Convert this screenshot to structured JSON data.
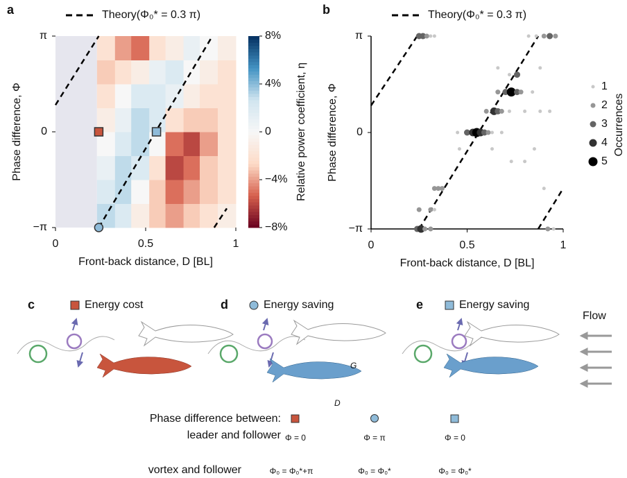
{
  "chart_data": [
    {
      "type": "heatmap",
      "panel_label": "a",
      "xlabel": "Front-back distance, D [BL]",
      "ylabel": "Phase difference, Φ",
      "colorbar_label": "Relative power coefficient, η",
      "xlim": [
        0,
        1
      ],
      "xticks": [
        0,
        0.5,
        1
      ],
      "ylim": [
        -1,
        1
      ],
      "yticks": [
        {
          "value": -1,
          "label": "−π"
        },
        0,
        {
          "value": 1,
          "label": "π"
        }
      ],
      "clim": [
        -8,
        8
      ],
      "cticks": [
        {
          "value": 8,
          "label": "8%"
        },
        {
          "value": 4,
          "label": "4%"
        },
        0,
        {
          "value": -4,
          "label": "−4%"
        },
        {
          "value": -8,
          "label": "−8%"
        }
      ],
      "xbins": [
        0.23,
        0.33,
        0.42,
        0.52,
        0.61,
        0.71,
        0.8,
        0.9,
        1.0
      ],
      "ybins": [
        -1,
        -0.75,
        -0.5,
        -0.25,
        0,
        0.25,
        0.5,
        0.75,
        1
      ],
      "z": [
        [
          3,
          2,
          -1,
          -3,
          -4,
          -3,
          -2,
          -1
        ],
        [
          2,
          3,
          0,
          -3,
          -5,
          -4,
          -3,
          -2
        ],
        [
          1,
          3,
          2,
          -2,
          -6,
          -5,
          -3,
          -2
        ],
        [
          0,
          2,
          3,
          0,
          -5,
          -6,
          -4,
          -2
        ],
        [
          -1,
          1,
          3,
          2,
          -2,
          -3,
          -3,
          -2
        ],
        [
          -2,
          0,
          2,
          2,
          1,
          -1,
          -2,
          -2
        ],
        [
          -3,
          -2,
          -1,
          1,
          2,
          0,
          -1,
          -2
        ],
        [
          -2,
          -4,
          -5,
          -2,
          -1,
          1,
          0,
          -1
        ]
      ],
      "theory": {
        "name": "Theory(Φ₀* = 0.3 π)",
        "x": [
          0,
          0.24,
          null,
          0.24,
          0.87,
          null,
          0.88,
          0.95
        ],
        "y": [
          0.28,
          1,
          null,
          -1,
          1,
          null,
          -1,
          -0.8
        ]
      },
      "markers": [
        {
          "x": 0.24,
          "y": 0,
          "shape": "square",
          "color": "#c8553d"
        },
        {
          "x": 0.56,
          "y": 0,
          "shape": "square",
          "color": "#8fbbd9"
        },
        {
          "x": 0.24,
          "y": -1,
          "shape": "circle",
          "color": "#8fbbd9"
        }
      ]
    },
    {
      "type": "scatter",
      "panel_label": "b",
      "xlabel": "Front-back distance, D [BL]",
      "ylabel": "Phase difference, Φ",
      "xlim": [
        0,
        1
      ],
      "xticks": [
        0,
        0.5,
        1
      ],
      "ylim": [
        -1,
        1
      ],
      "yticks": [
        {
          "value": -1,
          "label": "−π"
        },
        0,
        {
          "value": 1,
          "label": "π"
        }
      ],
      "theory": {
        "name": "Theory(Φ₀* = 0.3 π)",
        "x": [
          0,
          0.24,
          null,
          0.25,
          0.87,
          null,
          0.87,
          1.0
        ],
        "y": [
          0.28,
          1,
          null,
          -1,
          1,
          null,
          -1,
          -0.58
        ]
      },
      "series": [
        {
          "x": [
            0.25,
            0.27,
            0.29,
            0.31,
            0.33,
            0.82,
            0.86,
            0.9,
            0.93,
            0.96,
            0.88,
            0.66,
            0.76,
            0.72,
            0.7,
            0.73,
            0.76,
            0.78,
            0.66,
            0.84,
            0.6,
            0.64,
            0.66,
            0.68,
            0.72,
            0.8,
            0.88,
            0.93,
            0.5,
            0.53,
            0.55,
            0.57,
            0.59,
            0.61,
            0.63,
            0.45,
            0.68,
            0.46,
            0.63,
            0.85,
            0.73,
            0.8,
            0.33,
            0.35,
            0.37,
            0.9,
            0.25,
            0.31,
            0.33,
            0.24,
            0.26,
            0.28,
            0.31,
            0.92,
            0.95
          ],
          "y": [
            1,
            1,
            1,
            1,
            1,
            1,
            1,
            1,
            1,
            1,
            0.67,
            0.67,
            0.6,
            0.6,
            0.42,
            0.42,
            0.42,
            0.42,
            0.42,
            0.42,
            0.22,
            0.22,
            0.22,
            0.22,
            0.22,
            0.22,
            0.22,
            0.22,
            0,
            0,
            0,
            0,
            0,
            0,
            0,
            0,
            0,
            -0.17,
            -0.17,
            -0.17,
            -0.3,
            -0.3,
            -0.58,
            -0.58,
            -0.58,
            -0.58,
            -0.8,
            -0.8,
            -0.8,
            -1,
            -1,
            -1,
            -1,
            -1,
            -1
          ],
          "sizes": [
            3,
            3,
            2,
            1,
            1,
            1,
            1,
            2,
            3,
            2,
            1,
            1,
            3,
            1,
            3,
            5,
            3,
            2,
            2,
            1,
            2,
            4,
            3,
            2,
            1,
            1,
            1,
            1,
            3,
            4,
            5,
            4,
            3,
            2,
            1,
            1,
            1,
            1,
            1,
            1,
            1,
            1,
            2,
            2,
            2,
            1,
            2,
            2,
            1,
            3,
            4,
            2,
            2,
            2,
            1
          ]
        }
      ],
      "size_legend": {
        "title": "Occurrences",
        "values": [
          1,
          2,
          3,
          4,
          5
        ]
      }
    }
  ],
  "panels": [
    {
      "label": "c",
      "title": "Energy cost"
    },
    {
      "label": "d",
      "title": "Energy saving"
    },
    {
      "label": "e",
      "title": "Energy saving"
    }
  ],
  "fish_labels": [
    "G",
    "D"
  ],
  "flow": "Flow",
  "phase_table": {
    "title": "Phase difference between:",
    "rows": [
      {
        "label": "leader and follower",
        "cells": [
          "Φ = 0",
          "Φ = π",
          "Φ = 0"
        ]
      },
      {
        "label": "vortex and follower",
        "cells": [
          "Φ₀ = Φ₀*+π",
          "Φ₀ = Φ₀*",
          "Φ₀ = Φ₀*"
        ]
      }
    ]
  }
}
